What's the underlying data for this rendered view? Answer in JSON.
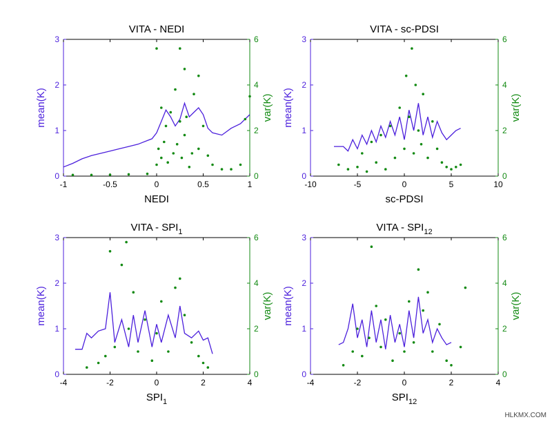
{
  "colors": {
    "mean": "#4b1fdc",
    "var": "#138a13",
    "axis": "#000000"
  },
  "watermark": "HLKMX.COM",
  "chart_data": [
    {
      "type": "line",
      "title": "VITA - NEDI",
      "title_parts": [
        "VITA - NEDI"
      ],
      "xlabel": "NEDI",
      "xlabel_parts": [
        "NEDI"
      ],
      "ylabel": "mean(K)",
      "y2label": "var(K)",
      "xlim": [
        -1,
        1
      ],
      "xticks": [
        "-1",
        "-0.5",
        "0",
        "0.5",
        "1"
      ],
      "ylim": [
        0,
        3
      ],
      "yticks": [
        "0",
        "1",
        "2",
        "3"
      ],
      "y2lim": [
        0,
        6
      ],
      "y2ticks": [
        "0",
        "2",
        "4",
        "6"
      ],
      "series": [
        {
          "axis": "left",
          "style": "line",
          "x": [
            -1,
            -0.9,
            -0.8,
            -0.7,
            -0.6,
            -0.5,
            -0.4,
            -0.3,
            -0.2,
            -0.1,
            -0.05,
            0,
            0.05,
            0.1,
            0.15,
            0.2,
            0.25,
            0.3,
            0.35,
            0.4,
            0.45,
            0.5,
            0.55,
            0.6,
            0.7,
            0.8,
            0.9,
            1.0
          ],
          "y": [
            0.2,
            0.28,
            0.38,
            0.45,
            0.5,
            0.55,
            0.6,
            0.65,
            0.7,
            0.78,
            0.82,
            0.95,
            1.2,
            1.45,
            1.3,
            1.1,
            1.25,
            1.6,
            1.3,
            1.4,
            1.5,
            1.35,
            1.05,
            0.95,
            0.9,
            1.05,
            1.15,
            1.35
          ]
        },
        {
          "axis": "right",
          "style": "scatter",
          "x": [
            -0.9,
            -0.7,
            -0.5,
            -0.3,
            -0.1,
            0.0,
            0.0,
            0.02,
            0.05,
            0.05,
            0.08,
            0.1,
            0.12,
            0.15,
            0.18,
            0.2,
            0.22,
            0.25,
            0.25,
            0.27,
            0.3,
            0.3,
            0.32,
            0.35,
            0.38,
            0.4,
            0.45,
            0.45,
            0.5,
            0.55,
            0.6,
            0.7,
            0.8,
            0.9,
            0.95,
            1.0
          ],
          "y": [
            0.05,
            0.05,
            0.06,
            0.08,
            0.1,
            5.6,
            0.5,
            1.2,
            3.0,
            0.8,
            1.5,
            2.2,
            0.6,
            2.8,
            1.0,
            3.8,
            1.4,
            5.6,
            2.4,
            0.8,
            4.7,
            1.8,
            2.6,
            0.4,
            1.0,
            3.6,
            4.4,
            1.2,
            2.2,
            0.9,
            0.5,
            0.3,
            0.3,
            0.5,
            2.5,
            3.5
          ]
        }
      ]
    },
    {
      "type": "line",
      "title": "VITA - sc-PDSI",
      "title_parts": [
        "VITA - sc-PDSI"
      ],
      "xlabel": "sc-PDSI",
      "xlabel_parts": [
        "sc-PDSI"
      ],
      "ylabel": "mean(K)",
      "y2label": "var(K)",
      "xlim": [
        -10,
        10
      ],
      "xticks": [
        "-10",
        "-5",
        "0",
        "5",
        "10"
      ],
      "ylim": [
        0,
        3
      ],
      "yticks": [
        "0",
        "1",
        "2",
        "3"
      ],
      "y2lim": [
        0,
        6
      ],
      "y2ticks": [
        "0",
        "2",
        "4",
        "6"
      ],
      "series": [
        {
          "axis": "left",
          "style": "line",
          "x": [
            -7.5,
            -6.5,
            -6,
            -5.5,
            -5,
            -4.5,
            -4,
            -3.5,
            -3,
            -2.5,
            -2,
            -1.5,
            -1,
            -0.5,
            0,
            0.5,
            1,
            1.5,
            2,
            2.5,
            3,
            3.5,
            4,
            4.5,
            5,
            5.5,
            6
          ],
          "y": [
            0.65,
            0.65,
            0.55,
            0.8,
            0.6,
            0.9,
            0.7,
            1.0,
            0.75,
            1.1,
            0.85,
            1.2,
            0.9,
            1.3,
            0.8,
            1.45,
            1.0,
            1.6,
            0.9,
            1.3,
            0.85,
            1.2,
            0.95,
            0.8,
            0.9,
            1.0,
            1.05
          ]
        },
        {
          "axis": "right",
          "style": "scatter",
          "x": [
            -7,
            -6,
            -5,
            -4.5,
            -4,
            -3.5,
            -3,
            -2.5,
            -2,
            -1.5,
            -1,
            -0.5,
            0,
            0.2,
            0.5,
            0.8,
            1,
            1.2,
            1.5,
            1.8,
            2,
            2.5,
            3,
            3.5,
            4,
            4.5,
            5,
            5.5,
            6
          ],
          "y": [
            0.5,
            0.3,
            0.4,
            1.0,
            0.2,
            1.5,
            0.6,
            1.8,
            0.3,
            2.2,
            0.8,
            3.0,
            1.2,
            4.4,
            2.6,
            5.6,
            1.0,
            4.0,
            2.0,
            1.4,
            3.6,
            0.8,
            2.4,
            1.2,
            0.6,
            0.4,
            0.3,
            0.4,
            0.5
          ]
        }
      ]
    },
    {
      "type": "line",
      "title": "VITA - SPI1",
      "title_parts": [
        "VITA - SPI",
        "1"
      ],
      "xlabel": "SPI1",
      "xlabel_parts": [
        "SPI",
        "1"
      ],
      "ylabel": "mean(K)",
      "y2label": "var(K)",
      "xlim": [
        -4,
        4
      ],
      "xticks": [
        "-4",
        "-2",
        "0",
        "2",
        "4"
      ],
      "ylim": [
        0,
        3
      ],
      "yticks": [
        "0",
        "1",
        "2",
        "3"
      ],
      "y2lim": [
        0,
        6
      ],
      "y2ticks": [
        "0",
        "2",
        "4",
        "6"
      ],
      "series": [
        {
          "axis": "left",
          "style": "line",
          "x": [
            -3.5,
            -3.2,
            -3,
            -2.8,
            -2.5,
            -2.2,
            -2.0,
            -1.8,
            -1.5,
            -1.2,
            -1.0,
            -0.8,
            -0.5,
            -0.2,
            0,
            0.2,
            0.5,
            0.8,
            1.0,
            1.2,
            1.5,
            1.8,
            2.0,
            2.2,
            2.4
          ],
          "y": [
            0.55,
            0.55,
            0.9,
            0.8,
            0.95,
            1.0,
            1.8,
            0.7,
            1.2,
            0.6,
            1.3,
            0.7,
            1.4,
            0.6,
            1.1,
            0.7,
            1.3,
            0.8,
            1.5,
            0.9,
            0.8,
            0.95,
            0.75,
            0.8,
            0.45
          ]
        },
        {
          "axis": "right",
          "style": "scatter",
          "x": [
            -3.0,
            -2.5,
            -2.2,
            -2.0,
            -1.8,
            -1.5,
            -1.3,
            -1.2,
            -1.0,
            -0.8,
            -0.5,
            -0.2,
            0,
            0.2,
            0.5,
            0.8,
            1.0,
            1.2,
            1.5,
            1.8,
            2.0,
            2.2
          ],
          "y": [
            0.3,
            0.5,
            0.8,
            5.4,
            1.2,
            4.8,
            5.8,
            2.0,
            3.6,
            1.0,
            2.4,
            0.6,
            1.8,
            3.2,
            1.0,
            3.8,
            4.2,
            2.6,
            1.4,
            0.8,
            0.5,
            0.3
          ]
        }
      ]
    },
    {
      "type": "line",
      "title": "VITA - SPI12",
      "title_parts": [
        "VITA - SPI",
        "12"
      ],
      "xlabel": "SPI12",
      "xlabel_parts": [
        "SPI",
        "12"
      ],
      "ylabel": "mean(K)",
      "y2label": "var(K)",
      "xlim": [
        -4,
        4
      ],
      "xticks": [
        "-4",
        "-2",
        "0",
        "2",
        "4"
      ],
      "ylim": [
        0,
        3
      ],
      "yticks": [
        "0",
        "1",
        "2",
        "3"
      ],
      "y2lim": [
        0,
        6
      ],
      "y2ticks": [
        "0",
        "2",
        "4",
        "6"
      ],
      "series": [
        {
          "axis": "left",
          "style": "line",
          "x": [
            -2.8,
            -2.6,
            -2.4,
            -2.2,
            -2.0,
            -1.8,
            -1.6,
            -1.4,
            -1.2,
            -1.0,
            -0.8,
            -0.6,
            -0.4,
            -0.2,
            0,
            0.2,
            0.4,
            0.6,
            0.8,
            1.0,
            1.2,
            1.4,
            1.6,
            1.8,
            2.0
          ],
          "y": [
            0.65,
            0.7,
            1.0,
            1.55,
            0.8,
            1.2,
            0.6,
            1.4,
            0.7,
            1.2,
            0.55,
            1.3,
            0.7,
            1.1,
            0.6,
            1.4,
            0.8,
            1.7,
            0.9,
            1.2,
            0.7,
            1.0,
            0.8,
            0.65,
            0.7
          ]
        },
        {
          "axis": "right",
          "style": "scatter",
          "x": [
            -2.6,
            -2.2,
            -2.0,
            -1.8,
            -1.5,
            -1.4,
            -1.2,
            -1.0,
            -0.8,
            -0.5,
            -0.2,
            0,
            0.2,
            0.4,
            0.6,
            0.8,
            1.0,
            1.2,
            1.5,
            1.8,
            2.0,
            2.4,
            2.6
          ],
          "y": [
            0.4,
            1.0,
            2.0,
            0.8,
            1.6,
            5.6,
            3.0,
            1.2,
            2.4,
            0.6,
            1.8,
            1.0,
            3.2,
            1.4,
            4.6,
            2.8,
            3.6,
            1.0,
            2.2,
            0.6,
            0.4,
            1.2,
            3.8
          ]
        }
      ]
    }
  ]
}
